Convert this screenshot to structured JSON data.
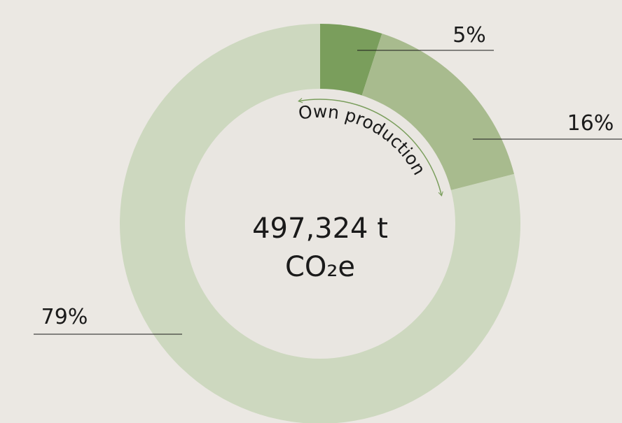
{
  "chart_data": {
    "type": "pie",
    "categories": [
      null,
      null,
      null
    ],
    "values": [
      5,
      16,
      79
    ],
    "value_labels": [
      "5%",
      "16%",
      "79%"
    ],
    "colors": [
      "#7a9e5c",
      "#a8bb8e",
      "#cdd8bf"
    ],
    "center_label": [
      "497,324 t",
      "CO₂e"
    ],
    "annotation": "Own production",
    "annotation_color": "#7a9e5c"
  }
}
